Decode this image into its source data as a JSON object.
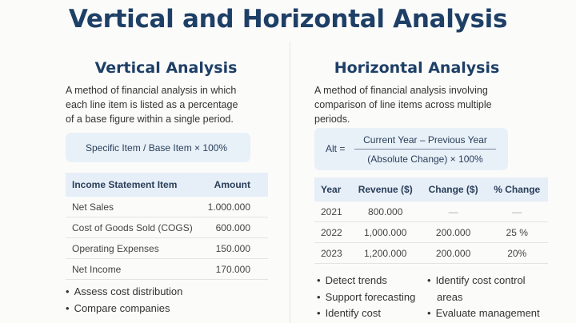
{
  "title": "Vertical and Horizontal Analysis",
  "vertical": {
    "heading": "Vertical Analysis",
    "description_lines": [
      "A method of financial analysis in which",
      "each line item is listed as a percentage",
      "of a base figure within a single period."
    ],
    "formula": "Specific Item / Base Item × 100%",
    "table": {
      "headers": [
        "Income Statement Item",
        "Amount"
      ],
      "rows": [
        [
          "Net Sales",
          "1.000.000"
        ],
        [
          "Cost of Goods Sold (COGS)",
          "600.000"
        ],
        [
          "Operating Expenses",
          "150.000"
        ],
        [
          "Net Income",
          "170.000"
        ]
      ]
    },
    "bullets": [
      "Assess cost distribution",
      "Compare companies"
    ]
  },
  "horizontal": {
    "heading": "Horizontal Analysis",
    "description_lines": [
      "A method of financial analysis involving",
      "comparison of line items across multiple",
      "periods."
    ],
    "formula": {
      "lhs": "Alt =",
      "numerator": "Current Year – Previous Year",
      "denominator": "(Absolute Change) × 100%"
    },
    "table": {
      "headers": [
        "Year",
        "Revenue ($)",
        "Change ($)",
        "% Change"
      ],
      "rows": [
        [
          "2021",
          "800.000",
          "—",
          "—"
        ],
        [
          "2022",
          "1,000.000",
          "200.000",
          "25 %"
        ],
        [
          "2023",
          "1,200.000",
          "200.000",
          "20%"
        ]
      ]
    },
    "bullets_col1": [
      "Detect trends",
      "Support forecasting",
      "Identify cost"
    ],
    "bullets_col2": [
      "Identify cost control areas",
      "Evaluate management"
    ]
  }
}
